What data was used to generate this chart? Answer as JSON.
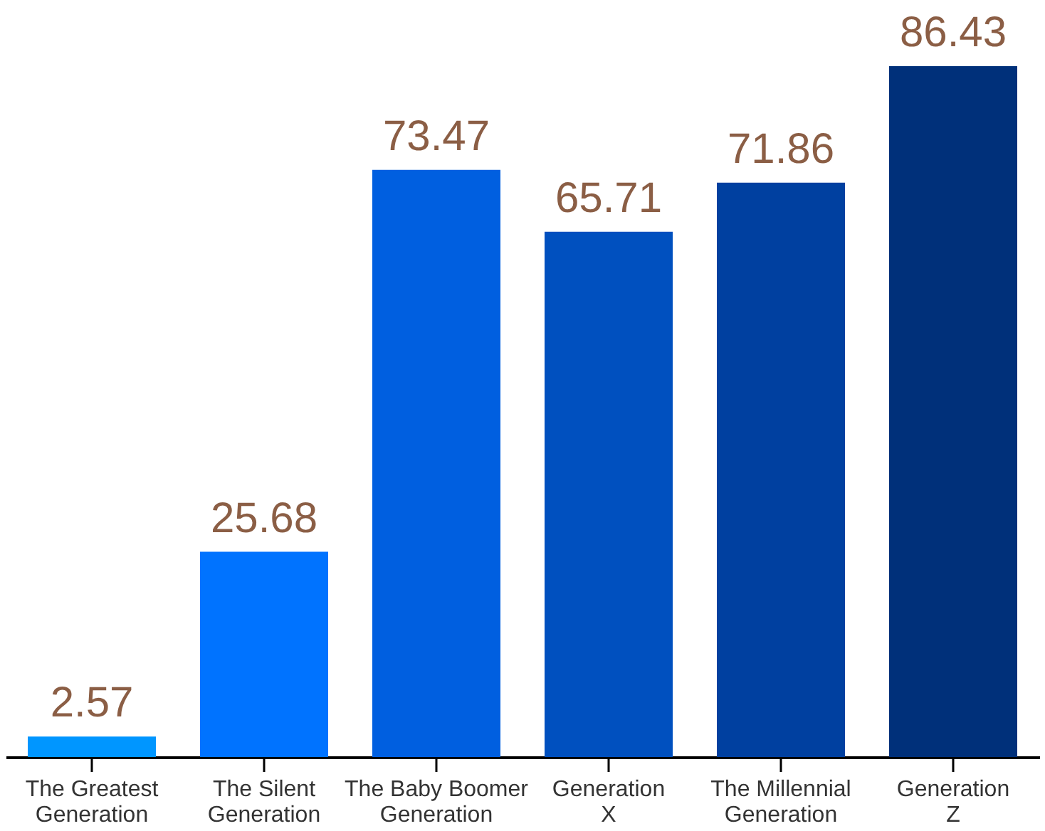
{
  "chart_data": {
    "type": "bar",
    "categories": [
      "The Greatest Generation",
      "The Silent Generation",
      "The Baby Boomer Generation",
      "Generation X",
      "The Millennial Generation",
      "Generation Z"
    ],
    "values": [
      2.57,
      25.68,
      73.47,
      65.71,
      71.86,
      86.43
    ],
    "colors": [
      "#0096ff",
      "#0073ff",
      "#005fe0",
      "#0050bf",
      "#0040a0",
      "#00307a"
    ],
    "ylim": [
      0,
      94
    ],
    "data_labels": true
  }
}
